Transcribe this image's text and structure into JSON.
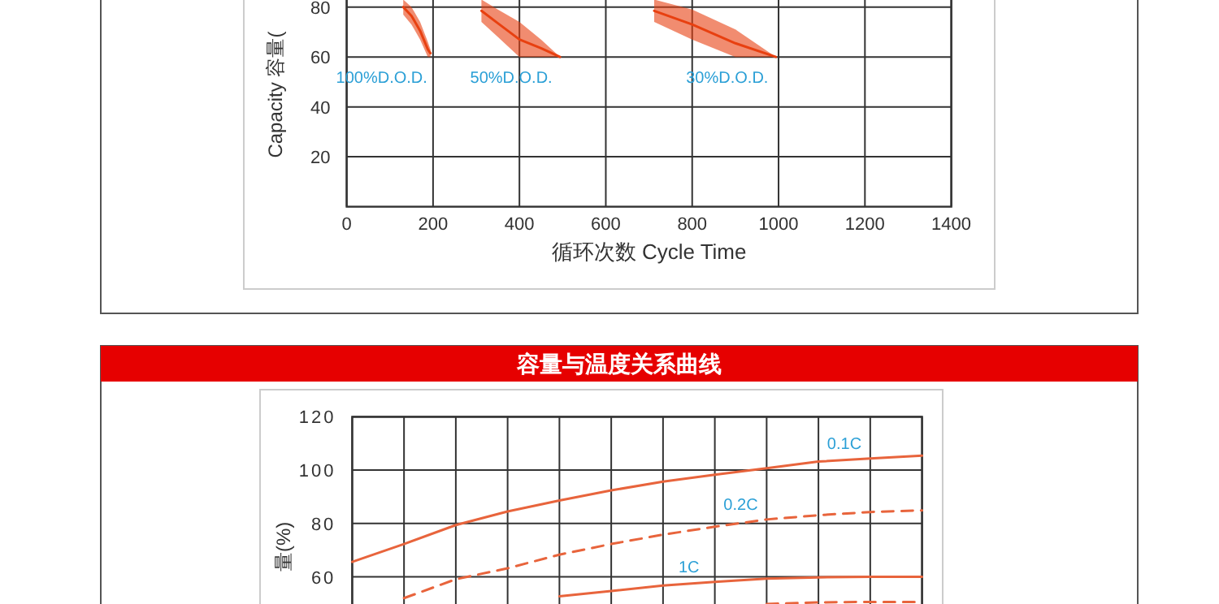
{
  "chart_data": [
    {
      "type": "line",
      "xlabel": "循环次数 Cycle Time",
      "ylabel": "Capacity 容量(",
      "xlim": [
        0,
        1400
      ],
      "ylim": [
        0,
        100
      ],
      "xticks": [
        0,
        200,
        400,
        600,
        800,
        1000,
        1200,
        1400
      ],
      "yticks": [
        20,
        40,
        60,
        80
      ],
      "grid": true,
      "series": [
        {
          "name": "100%D.O.D.",
          "color": "#e84010",
          "x": [
            131,
            150,
            170,
            188,
            194
          ],
          "values": [
            80,
            76.5,
            70.5,
            63,
            61.5
          ],
          "lower": [
            77,
            73,
            67,
            60,
            60
          ],
          "upper": [
            83,
            80,
            74,
            66,
            63
          ]
        },
        {
          "name": "50%D.O.D.",
          "color": "#e84010",
          "x": [
            312,
            350,
            400,
            450,
            494
          ],
          "values": [
            78.5,
            73.5,
            67,
            63.5,
            60
          ],
          "lower": [
            74,
            68,
            60,
            60,
            60
          ],
          "upper": [
            83,
            79,
            74,
            67,
            60
          ]
        },
        {
          "name": "30%D.O.D.",
          "color": "#e84010",
          "x": [
            712,
            800,
            900,
            994
          ],
          "values": [
            78.5,
            73,
            65.5,
            60
          ],
          "lower": [
            74,
            67,
            60,
            60
          ],
          "upper": [
            83,
            79,
            71,
            60
          ]
        }
      ]
    },
    {
      "type": "line",
      "title": "容量与温度关系曲线",
      "ylabel": "量(%)",
      "categories": [
        null,
        null,
        null,
        null,
        null,
        null,
        null,
        null,
        null,
        null,
        null,
        null
      ],
      "ylim": [
        40,
        120
      ],
      "yticks": [
        60,
        80,
        100,
        120
      ],
      "grid": true,
      "series": [
        {
          "name": "0.1C",
          "color": "#e8643c",
          "line_style": "solid",
          "values": [
            65.6,
            72.3,
            79.4,
            84.5,
            88.6,
            92.4,
            95.7,
            98.3,
            100.7,
            103.2,
            104.4,
            105.4
          ]
        },
        {
          "name": "0.2C",
          "color": "#e8643c",
          "line_style": "dashed",
          "values": [
            null,
            52,
            59.1,
            63.2,
            68.3,
            72.3,
            75.8,
            78.8,
            81.5,
            83.1,
            84.3,
            84.9
          ]
        },
        {
          "name": "1C",
          "color": "#e8643c",
          "line_style": "solid",
          "values": [
            null,
            null,
            null,
            null,
            52.7,
            54.7,
            56.7,
            58.1,
            59.3,
            59.8,
            60,
            60
          ]
        },
        {
          "color": "#e8643c",
          "line_style": "dashed",
          "values": [
            null,
            null,
            null,
            null,
            null,
            null,
            null,
            null,
            49.8,
            50.4,
            50.6,
            50.6
          ]
        }
      ]
    }
  ]
}
